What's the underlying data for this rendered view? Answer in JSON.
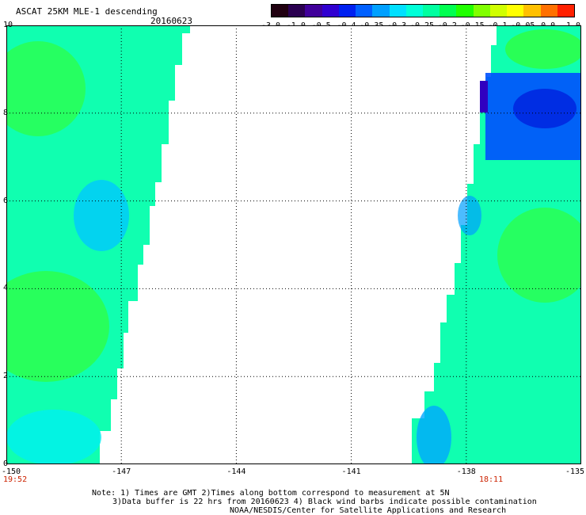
{
  "header": {
    "title": "ASCAT 25KM MLE-1 descending",
    "date": "20160623"
  },
  "colorbar": {
    "labels": [
      "-3.0",
      "-1.0",
      "-0.5",
      "-0.4",
      "-0.35",
      "-0.3",
      "-0.25",
      "-0.2",
      "-0.15",
      "-0.1",
      "-0.05",
      "0.0",
      "1.0"
    ],
    "colors": [
      "#200010",
      "#2a0050",
      "#40009a",
      "#3000d0",
      "#0020f0",
      "#0060ff",
      "#00a0ff",
      "#00e0ff",
      "#00ffd8",
      "#00ffa0",
      "#00ff50",
      "#20ff00",
      "#80ff00",
      "#d0ff00",
      "#ffff00",
      "#ffc000",
      "#ff7000",
      "#ff2000"
    ]
  },
  "axes": {
    "y_ticks": [
      "0",
      "2",
      "4",
      "6",
      "8",
      "10"
    ],
    "x_ticks": [
      "-150",
      "-147",
      "-144",
      "-141",
      "-138",
      "-135"
    ]
  },
  "times": {
    "left": "19:52",
    "right": "18:11"
  },
  "notes": {
    "line1": "Note: 1) Times are GMT 2)Times along bottom correspond to measurement at 5N",
    "line2": "3)Data buffer is 22 hrs from 20160623 4) Black wind barbs indicate possible contamination",
    "line3": "NOAA/NESDIS/Center for Satellite Applications and Research"
  }
}
